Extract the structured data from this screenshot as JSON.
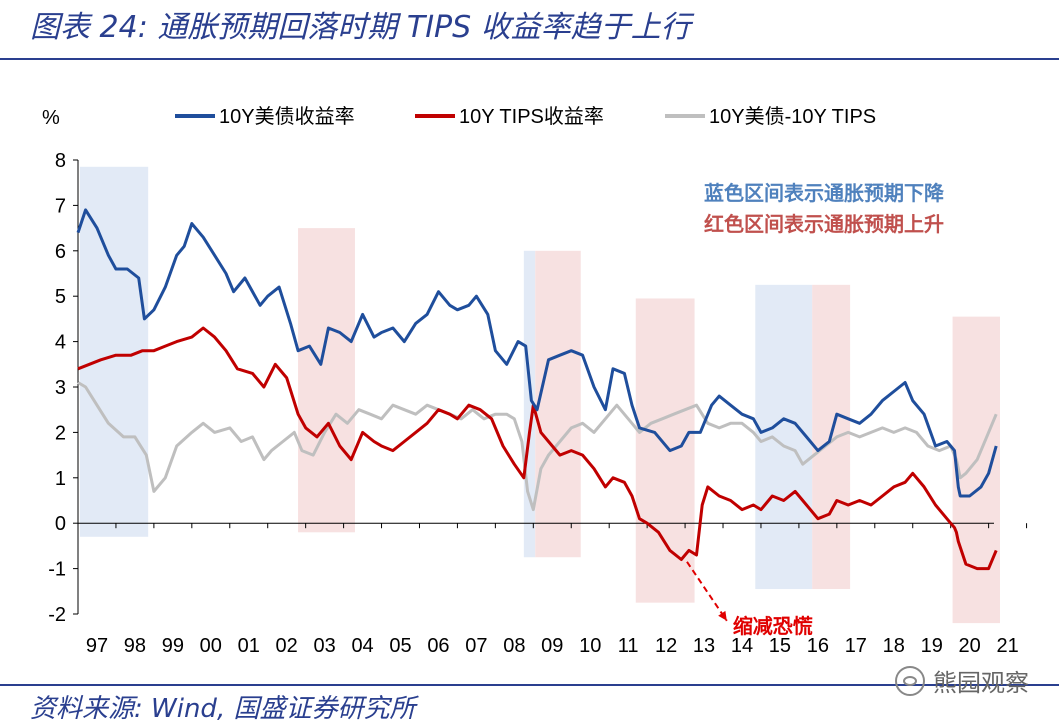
{
  "header": {
    "title": "图表 24: 通胀预期回落时期 TIPS 收益率趋于上行"
  },
  "footer": {
    "source": "资料来源: Wind, 国盛证券研究所",
    "watermark": "熊园观察"
  },
  "chart_data": {
    "type": "line",
    "title": "",
    "ylabel": "%",
    "xlabel": "",
    "ylim": [
      -2,
      8
    ],
    "yticks": [
      -2,
      -1,
      0,
      1,
      2,
      3,
      4,
      5,
      6,
      7,
      8
    ],
    "xlim": [
      1997,
      2021.3
    ],
    "xticklabels": [
      "97",
      "98",
      "99",
      "00",
      "01",
      "02",
      "03",
      "04",
      "05",
      "06",
      "07",
      "08",
      "09",
      "10",
      "11",
      "12",
      "13",
      "14",
      "15",
      "16",
      "17",
      "18",
      "19",
      "20",
      "21"
    ],
    "legend_position": "top",
    "series": [
      {
        "name": "10Y美债收益率",
        "color": "#1f4e9c",
        "x": [
          1997.0,
          1997.2,
          1997.5,
          1997.8,
          1998.0,
          1998.3,
          1998.6,
          1998.75,
          1999.0,
          1999.3,
          1999.6,
          1999.8,
          2000.0,
          2000.3,
          2000.6,
          2000.9,
          2001.1,
          2001.4,
          2001.8,
          2002.0,
          2002.3,
          2002.6,
          2002.8,
          2003.1,
          2003.4,
          2003.6,
          2003.9,
          2004.2,
          2004.5,
          2004.8,
          2005.0,
          2005.3,
          2005.6,
          2005.9,
          2006.2,
          2006.5,
          2006.8,
          2007.0,
          2007.3,
          2007.5,
          2007.8,
          2008.0,
          2008.3,
          2008.6,
          2008.8,
          2008.95,
          2009.1,
          2009.4,
          2009.7,
          2010.0,
          2010.3,
          2010.6,
          2010.9,
          2011.1,
          2011.4,
          2011.6,
          2011.8,
          2012.2,
          2012.6,
          2012.9,
          2013.1,
          2013.4,
          2013.7,
          2013.9,
          2014.2,
          2014.5,
          2014.8,
          2015.0,
          2015.3,
          2015.6,
          2015.9,
          2016.2,
          2016.5,
          2016.8,
          2017.0,
          2017.3,
          2017.6,
          2017.9,
          2018.2,
          2018.5,
          2018.8,
          2019.0,
          2019.3,
          2019.6,
          2019.9,
          2020.1,
          2020.2,
          2020.25,
          2020.5,
          2020.8,
          2021.0,
          2021.2
        ],
        "y": [
          6.4,
          6.9,
          6.5,
          5.9,
          5.6,
          5.6,
          5.4,
          4.5,
          4.7,
          5.2,
          5.9,
          6.1,
          6.6,
          6.3,
          5.9,
          5.5,
          5.1,
          5.4,
          4.8,
          5.0,
          5.2,
          4.4,
          3.8,
          3.9,
          3.5,
          4.3,
          4.2,
          4.0,
          4.6,
          4.1,
          4.2,
          4.3,
          4.0,
          4.4,
          4.6,
          5.1,
          4.8,
          4.7,
          4.8,
          5.0,
          4.6,
          3.8,
          3.5,
          4.0,
          3.9,
          2.7,
          2.5,
          3.6,
          3.7,
          3.8,
          3.7,
          3.0,
          2.5,
          3.4,
          3.3,
          2.6,
          2.1,
          2.0,
          1.6,
          1.7,
          2.0,
          2.0,
          2.6,
          2.8,
          2.6,
          2.4,
          2.3,
          2.0,
          2.1,
          2.3,
          2.2,
          1.9,
          1.6,
          1.8,
          2.4,
          2.3,
          2.2,
          2.4,
          2.7,
          2.9,
          3.1,
          2.7,
          2.4,
          1.7,
          1.8,
          1.6,
          0.8,
          0.6,
          0.6,
          0.8,
          1.1,
          1.7
        ]
      },
      {
        "name": "10Y TIPS收益率",
        "color": "#c00000",
        "x": [
          1997.0,
          1997.3,
          1997.6,
          1998.0,
          1998.4,
          1998.7,
          1999.0,
          1999.3,
          1999.6,
          2000.0,
          2000.3,
          2000.6,
          2000.9,
          2001.2,
          2001.6,
          2001.9,
          2002.2,
          2002.5,
          2002.8,
          2003.0,
          2003.3,
          2003.6,
          2003.9,
          2004.2,
          2004.5,
          2004.8,
          2005.0,
          2005.3,
          2005.6,
          2005.9,
          2006.2,
          2006.5,
          2006.8,
          2007.0,
          2007.3,
          2007.6,
          2007.9,
          2008.2,
          2008.5,
          2008.75,
          2008.9,
          2009.0,
          2009.2,
          2009.4,
          2009.7,
          2010.0,
          2010.3,
          2010.6,
          2010.9,
          2011.1,
          2011.4,
          2011.6,
          2011.8,
          2012.0,
          2012.3,
          2012.6,
          2012.9,
          2013.1,
          2013.3,
          2013.45,
          2013.6,
          2013.9,
          2014.2,
          2014.5,
          2014.8,
          2015.0,
          2015.3,
          2015.6,
          2015.9,
          2016.2,
          2016.5,
          2016.8,
          2017.0,
          2017.3,
          2017.6,
          2017.9,
          2018.2,
          2018.5,
          2018.8,
          2019.0,
          2019.3,
          2019.6,
          2019.9,
          2020.1,
          2020.15,
          2020.2,
          2020.4,
          2020.7,
          2021.0,
          2021.2
        ],
        "y": [
          3.4,
          3.5,
          3.6,
          3.7,
          3.7,
          3.8,
          3.8,
          3.9,
          4.0,
          4.1,
          4.3,
          4.1,
          3.8,
          3.4,
          3.3,
          3.0,
          3.5,
          3.2,
          2.4,
          2.1,
          1.9,
          2.2,
          1.7,
          1.4,
          2.0,
          1.8,
          1.7,
          1.6,
          1.8,
          2.0,
          2.2,
          2.5,
          2.4,
          2.3,
          2.6,
          2.5,
          2.3,
          1.7,
          1.3,
          1.0,
          2.0,
          2.6,
          2.0,
          1.8,
          1.5,
          1.6,
          1.5,
          1.2,
          0.8,
          1.0,
          0.9,
          0.6,
          0.1,
          0.0,
          -0.2,
          -0.6,
          -0.8,
          -0.6,
          -0.7,
          0.4,
          0.8,
          0.6,
          0.5,
          0.3,
          0.4,
          0.3,
          0.6,
          0.5,
          0.7,
          0.4,
          0.1,
          0.2,
          0.5,
          0.4,
          0.5,
          0.4,
          0.6,
          0.8,
          0.9,
          1.1,
          0.8,
          0.4,
          0.1,
          -0.1,
          -0.2,
          -0.4,
          -0.9,
          -1.0,
          -1.0,
          -0.6
        ]
      },
      {
        "name": "10Y美债-10Y TIPS",
        "color": "#bfbfbf",
        "x": [
          1997.0,
          1997.2,
          1997.5,
          1997.8,
          1998.2,
          1998.5,
          1998.8,
          1999.0,
          1999.3,
          1999.6,
          2000.0,
          2000.3,
          2000.6,
          2001.0,
          2001.3,
          2001.6,
          2001.9,
          2002.1,
          2002.4,
          2002.7,
          2002.9,
          2003.2,
          2003.5,
          2003.8,
          2004.1,
          2004.4,
          2004.7,
          2005.0,
          2005.3,
          2005.6,
          2005.9,
          2006.2,
          2006.5,
          2006.8,
          2007.1,
          2007.4,
          2007.7,
          2008.0,
          2008.3,
          2008.5,
          2008.7,
          2008.85,
          2009.0,
          2009.2,
          2009.4,
          2009.7,
          2010.0,
          2010.3,
          2010.6,
          2010.9,
          2011.2,
          2011.5,
          2011.8,
          2012.1,
          2012.4,
          2012.7,
          2013.0,
          2013.3,
          2013.6,
          2013.9,
          2014.2,
          2014.5,
          2014.8,
          2015.0,
          2015.3,
          2015.6,
          2015.9,
          2016.1,
          2016.4,
          2016.7,
          2017.0,
          2017.3,
          2017.6,
          2017.9,
          2018.2,
          2018.5,
          2018.8,
          2019.1,
          2019.4,
          2019.7,
          2020.0,
          2020.15,
          2020.25,
          2020.4,
          2020.7,
          2021.0,
          2021.2
        ],
        "y": [
          3.1,
          3.0,
          2.6,
          2.2,
          1.9,
          1.9,
          1.5,
          0.7,
          1.0,
          1.7,
          2.0,
          2.2,
          2.0,
          2.1,
          1.8,
          1.9,
          1.4,
          1.6,
          1.8,
          2.0,
          1.6,
          1.5,
          2.0,
          2.4,
          2.2,
          2.5,
          2.4,
          2.3,
          2.6,
          2.5,
          2.4,
          2.6,
          2.5,
          2.4,
          2.3,
          2.5,
          2.3,
          2.4,
          2.4,
          2.3,
          1.8,
          0.7,
          0.3,
          1.2,
          1.5,
          1.8,
          2.1,
          2.2,
          2.0,
          2.3,
          2.6,
          2.3,
          2.0,
          2.2,
          2.3,
          2.4,
          2.5,
          2.6,
          2.2,
          2.1,
          2.2,
          2.2,
          2.0,
          1.8,
          1.9,
          1.7,
          1.6,
          1.3,
          1.5,
          1.7,
          1.9,
          2.0,
          1.9,
          2.0,
          2.1,
          2.0,
          2.1,
          2.0,
          1.7,
          1.6,
          1.7,
          1.4,
          1.0,
          1.1,
          1.4,
          2.0,
          2.4
        ]
      }
    ],
    "shaded_regions": [
      {
        "kind": "down",
        "x0": 1997.05,
        "x1": 1998.85
      },
      {
        "kind": "up",
        "x0": 2002.8,
        "x1": 2004.3
      },
      {
        "kind": "down",
        "x0": 2008.75,
        "x1": 2009.05
      },
      {
        "kind": "up",
        "x0": 2009.05,
        "x1": 2010.25
      },
      {
        "kind": "up",
        "x0": 2011.7,
        "x1": 2013.25
      },
      {
        "kind": "down",
        "x0": 2014.85,
        "x1": 2016.35
      },
      {
        "kind": "up",
        "x0": 2016.35,
        "x1": 2017.35
      },
      {
        "kind": "up",
        "x0": 2020.05,
        "x1": 2021.3
      }
    ],
    "region_colors": {
      "down": "#dde6f4",
      "up": "#f6dcdc"
    },
    "annotations": {
      "legend_blue_note": "蓝色区间表示通胀预期下降",
      "legend_red_note": "红色区间表示通胀预期上升",
      "arrow_label": "缩减恐慌",
      "blue_note_color": "#4f81bd",
      "red_note_color": "#c0504d",
      "arrow_color": "#e00000"
    }
  }
}
